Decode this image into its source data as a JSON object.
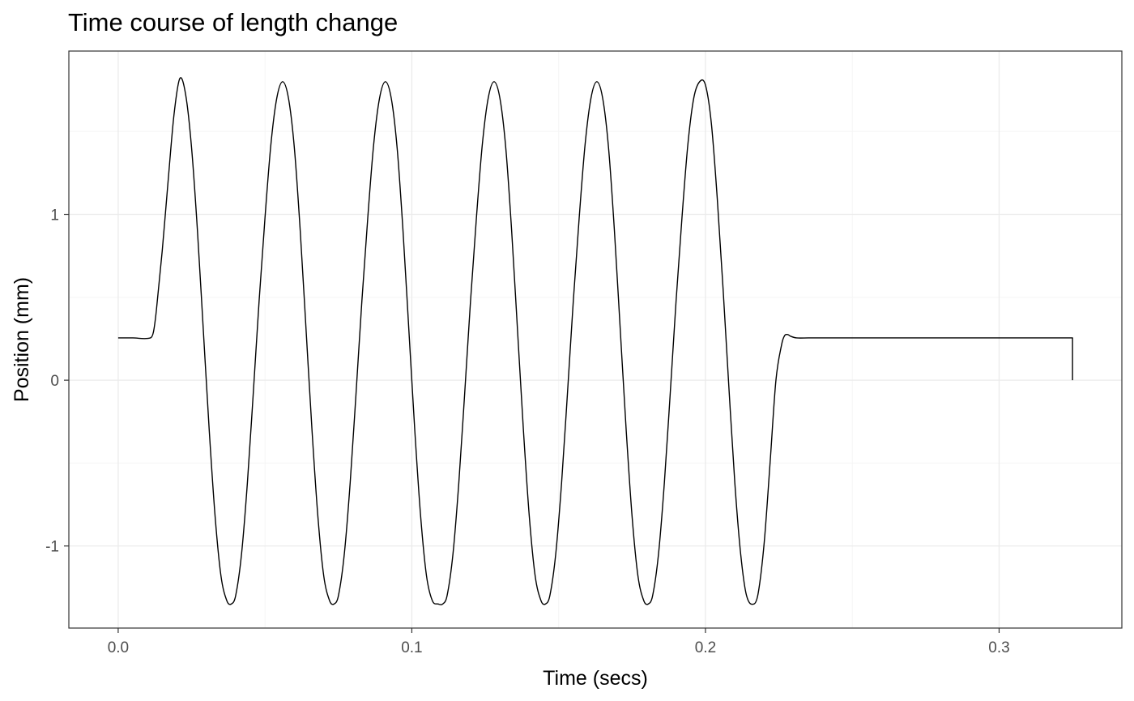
{
  "chart_data": {
    "type": "line",
    "title": "Time course of length change",
    "xlabel": "Time (secs)",
    "ylabel": "Position (mm)",
    "xlim": [
      -0.0168,
      0.3418
    ],
    "ylim": [
      -1.495,
      1.985
    ],
    "x_ticks": [
      0.0,
      0.1,
      0.2,
      0.3
    ],
    "x_tick_labels": [
      "0.0",
      "0.1",
      "0.2",
      "0.3"
    ],
    "x_minor_ticks": [
      0.05,
      0.15,
      0.25
    ],
    "y_ticks": [
      -1,
      0,
      1
    ],
    "y_tick_labels": [
      "-1",
      "0",
      "1"
    ],
    "y_minor_ticks": [
      -0.5,
      0.5,
      1.5
    ],
    "grid": true,
    "colors": {
      "line": "#000000",
      "grid_major": "#ebebeb",
      "grid_minor": "#f5f5f5",
      "panel_border": "#333333"
    },
    "series": [
      {
        "x": [
          0.0,
          0.005,
          0.011,
          0.012,
          0.013,
          0.015,
          0.017,
          0.019,
          0.021,
          0.023,
          0.025,
          0.027,
          0.029,
          0.031,
          0.033,
          0.035,
          0.037,
          0.0385,
          0.04,
          0.042,
          0.044,
          0.046,
          0.048,
          0.05,
          0.052,
          0.054,
          0.056,
          0.058,
          0.06,
          0.062,
          0.064,
          0.066,
          0.068,
          0.07,
          0.072,
          0.0735,
          0.075,
          0.077,
          0.079,
          0.081,
          0.083,
          0.085,
          0.087,
          0.089,
          0.091,
          0.093,
          0.095,
          0.097,
          0.099,
          0.101,
          0.103,
          0.105,
          0.107,
          0.109,
          0.1105,
          0.112,
          0.114,
          0.116,
          0.118,
          0.12,
          0.122,
          0.124,
          0.126,
          0.128,
          0.13,
          0.132,
          0.134,
          0.136,
          0.138,
          0.14,
          0.142,
          0.144,
          0.1455,
          0.147,
          0.149,
          0.151,
          0.153,
          0.155,
          0.157,
          0.159,
          0.161,
          0.163,
          0.165,
          0.167,
          0.169,
          0.171,
          0.173,
          0.175,
          0.177,
          0.179,
          0.1805,
          0.182,
          0.184,
          0.186,
          0.188,
          0.19,
          0.192,
          0.194,
          0.196,
          0.198,
          0.2,
          0.202,
          0.204,
          0.206,
          0.208,
          0.21,
          0.212,
          0.214,
          0.2165,
          0.218,
          0.22,
          0.222,
          0.224,
          0.226,
          0.227,
          0.228,
          0.229,
          0.231,
          0.235,
          0.25,
          0.28,
          0.31,
          0.325,
          0.325
        ],
        "y": [
          0.255,
          0.255,
          0.255,
          0.29,
          0.42,
          0.78,
          1.2,
          1.6,
          1.82,
          1.72,
          1.4,
          0.9,
          0.3,
          -0.3,
          -0.82,
          -1.18,
          -1.33,
          -1.35,
          -1.3,
          -1.05,
          -0.62,
          -0.08,
          0.48,
          0.98,
          1.42,
          1.7,
          1.8,
          1.7,
          1.4,
          0.9,
          0.3,
          -0.3,
          -0.82,
          -1.18,
          -1.33,
          -1.35,
          -1.3,
          -1.05,
          -0.62,
          -0.08,
          0.48,
          0.98,
          1.42,
          1.7,
          1.8,
          1.7,
          1.4,
          0.9,
          0.3,
          -0.3,
          -0.82,
          -1.18,
          -1.33,
          -1.35,
          -1.35,
          -1.3,
          -1.05,
          -0.62,
          -0.08,
          0.48,
          0.98,
          1.42,
          1.7,
          1.8,
          1.7,
          1.4,
          0.9,
          0.3,
          -0.3,
          -0.82,
          -1.18,
          -1.33,
          -1.35,
          -1.3,
          -1.05,
          -0.62,
          -0.08,
          0.48,
          0.98,
          1.42,
          1.7,
          1.8,
          1.7,
          1.4,
          0.9,
          0.3,
          -0.3,
          -0.82,
          -1.18,
          -1.33,
          -1.35,
          -1.3,
          -1.05,
          -0.62,
          -0.08,
          0.48,
          0.98,
          1.42,
          1.7,
          1.8,
          1.78,
          1.55,
          1.1,
          0.55,
          -0.05,
          -0.62,
          -1.05,
          -1.3,
          -1.35,
          -1.28,
          -0.98,
          -0.5,
          0.0,
          0.22,
          0.27,
          0.275,
          0.265,
          0.255,
          0.255,
          0.255,
          0.255,
          0.255,
          0.255,
          0.0
        ]
      }
    ]
  }
}
